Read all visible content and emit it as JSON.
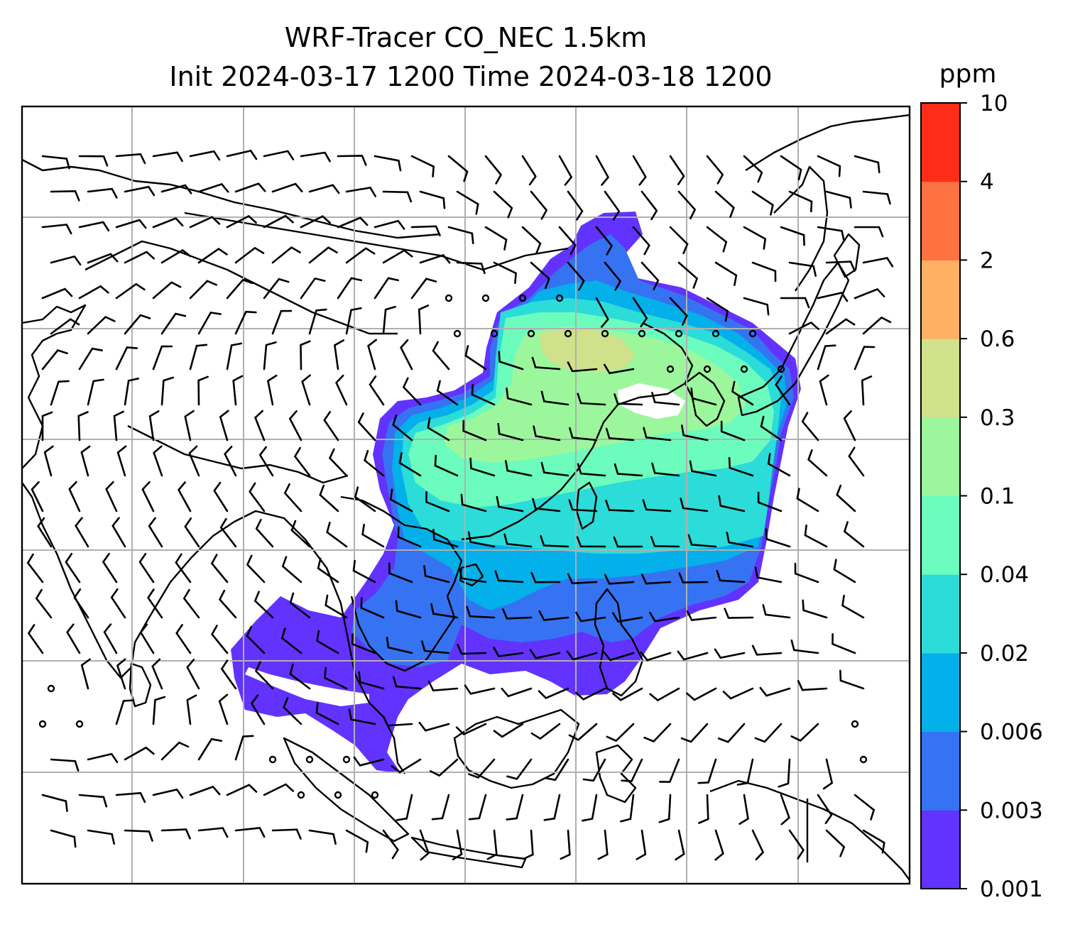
{
  "title": {
    "line1": "WRF-Tracer CO_NEC 1.5km",
    "line2": "Init 2024-03-17 1200 Time 2024-03-18 1200"
  },
  "colorbar": {
    "unit": "ppm",
    "levels": [
      "0.001",
      "0.003",
      "0.006",
      "0.02",
      "0.04",
      "0.1",
      "0.3",
      "0.6",
      "2",
      "4",
      "10"
    ],
    "colors": [
      "#6233ff",
      "#3573f2",
      "#04b0e9",
      "#2cdcd8",
      "#6bfcbe",
      "#9cf79c",
      "#d1e08a",
      "#ffb063",
      "#ff7241",
      "#ff2d17"
    ]
  },
  "map": {
    "colormap": "rainbow",
    "tracer_levels": [
      "0.001",
      "0.003",
      "0.006",
      "0.02",
      "0.04",
      "0.1",
      "0.3",
      "0.6"
    ],
    "features": [
      "coastlines",
      "country-borders",
      "gridlines",
      "wind-barbs"
    ],
    "gridlines": true
  }
}
